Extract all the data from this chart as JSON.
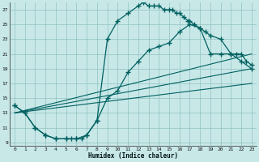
{
  "bg_color": "#c8e8e8",
  "grid_color": "#90c0c0",
  "line_color": "#006060",
  "xlabel": "Humidex (Indice chaleur)",
  "xticks": [
    0,
    1,
    2,
    3,
    4,
    5,
    6,
    7,
    8,
    9,
    10,
    11,
    12,
    13,
    14,
    15,
    16,
    17,
    18,
    19,
    20,
    21,
    22,
    23
  ],
  "yticks": [
    9,
    11,
    13,
    15,
    17,
    19,
    21,
    23,
    25,
    27
  ],
  "xlim": [
    -0.5,
    23.5
  ],
  "ylim": [
    8.5,
    28.0
  ],
  "curve_top_x": [
    0,
    1,
    2,
    3,
    4,
    5,
    5.5,
    6,
    6.5,
    7,
    8,
    9,
    10,
    11,
    12,
    12.5,
    13,
    13.5,
    14,
    14.5,
    15,
    15.3,
    15.7,
    16,
    16.4,
    16.8,
    17,
    17.4,
    18,
    18.5,
    19,
    20,
    21,
    21.5,
    22,
    22.5,
    23
  ],
  "curve_top_y": [
    14,
    13,
    11,
    10,
    9.5,
    9.5,
    9.5,
    9.5,
    9.5,
    10,
    12,
    23,
    25.5,
    26.5,
    27.5,
    28,
    27.5,
    27.5,
    27.5,
    27,
    27,
    27,
    26.5,
    26.5,
    26,
    25.5,
    25.5,
    25,
    24.5,
    24,
    23.5,
    23,
    21,
    21,
    21,
    20,
    19.5
  ],
  "curve_low_x": [
    0,
    1,
    2,
    3,
    4,
    5,
    6,
    7,
    8,
    9,
    10,
    11,
    12,
    13,
    14,
    15,
    16,
    17,
    18,
    19,
    20,
    21,
    22,
    23
  ],
  "curve_low_y": [
    14,
    13,
    11,
    10,
    9.5,
    9.5,
    9.5,
    10,
    12,
    15,
    16,
    18.5,
    20,
    21.5,
    22,
    22.5,
    24,
    25,
    24.5,
    21,
    21,
    21,
    20,
    19
  ],
  "line1_x": [
    0,
    23
  ],
  "line1_y": [
    13,
    17.0
  ],
  "line2_x": [
    0,
    23
  ],
  "line2_y": [
    13,
    19.0
  ],
  "line3_x": [
    0,
    23
  ],
  "line3_y": [
    13,
    21.0
  ]
}
